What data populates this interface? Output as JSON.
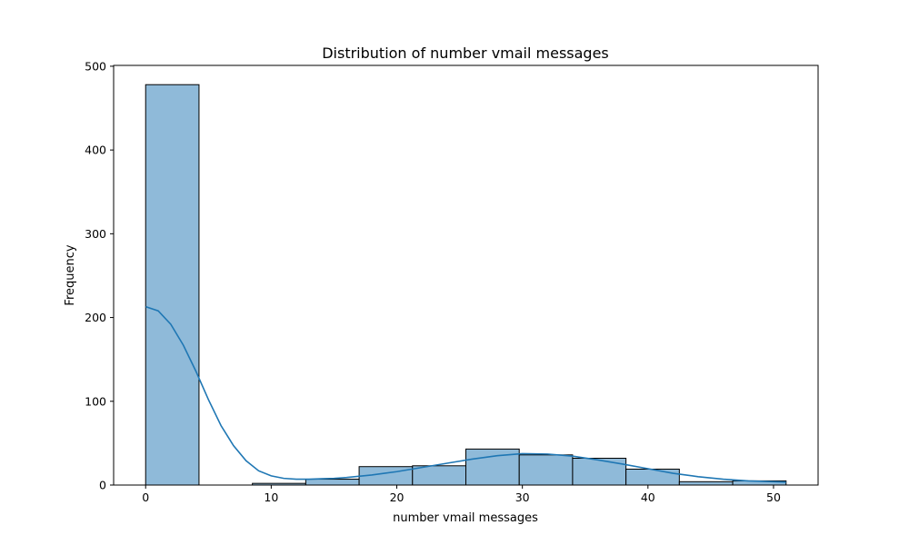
{
  "chart_data": {
    "type": "bar",
    "title": "Distribution of number vmail messages",
    "xlabel": "number vmail messages",
    "ylabel": "Frequency",
    "xlim": [
      -2.55,
      53.55
    ],
    "ylim": [
      0,
      501
    ],
    "xticks": [
      0,
      10,
      20,
      30,
      40,
      50
    ],
    "yticks": [
      0,
      100,
      200,
      300,
      400,
      500
    ],
    "grid": false,
    "bins": [
      {
        "x0": 0.0,
        "x1": 4.25,
        "count": 478
      },
      {
        "x0": 4.25,
        "x1": 8.5,
        "count": 0
      },
      {
        "x0": 8.5,
        "x1": 12.75,
        "count": 2
      },
      {
        "x0": 12.75,
        "x1": 17.0,
        "count": 7
      },
      {
        "x0": 17.0,
        "x1": 21.25,
        "count": 22
      },
      {
        "x0": 21.25,
        "x1": 25.5,
        "count": 23
      },
      {
        "x0": 25.5,
        "x1": 29.75,
        "count": 43
      },
      {
        "x0": 29.75,
        "x1": 34.0,
        "count": 36
      },
      {
        "x0": 34.0,
        "x1": 38.25,
        "count": 32
      },
      {
        "x0": 38.25,
        "x1": 42.5,
        "count": 19
      },
      {
        "x0": 42.5,
        "x1": 46.75,
        "count": 4
      },
      {
        "x0": 46.75,
        "x1": 51.0,
        "count": 5
      }
    ],
    "kde": {
      "x": [
        0,
        1,
        2,
        3,
        4,
        5,
        6,
        7,
        8,
        9,
        10,
        11,
        12,
        13,
        14,
        15,
        16,
        17,
        18,
        19,
        20,
        22,
        24,
        26,
        28,
        30,
        32,
        34,
        36,
        38,
        40,
        42,
        44,
        46,
        48,
        50,
        51
      ],
      "y": [
        213,
        208,
        192,
        167,
        136,
        102,
        71,
        47,
        29,
        17,
        11,
        8,
        7,
        7,
        7.5,
        8,
        9,
        10.5,
        12,
        14,
        16,
        21,
        26,
        31,
        35,
        37.5,
        37,
        34.5,
        30,
        25,
        19.5,
        14,
        10,
        7,
        5,
        4,
        3.5
      ]
    },
    "colors": {
      "bar_fill": "#8fbad9",
      "bar_edge": "#000000",
      "kde_line": "#1f77b4"
    }
  }
}
